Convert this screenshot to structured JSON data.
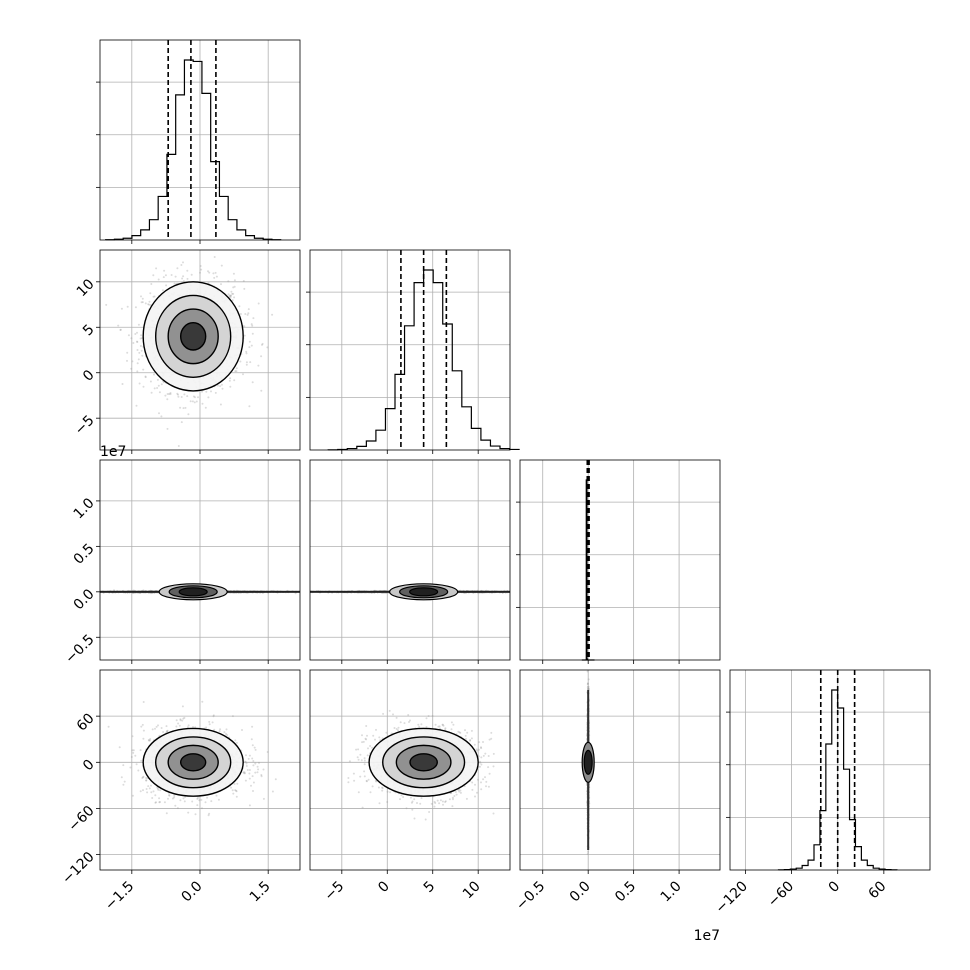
{
  "chart_data": {
    "type": "corner",
    "grid": true,
    "parameters": [
      {
        "range": [
          -2.2,
          2.2
        ],
        "ticks": [
          -1.5,
          0.0,
          1.5
        ],
        "tick_labels": [
          "−1.5",
          "0.0",
          "1.5"
        ],
        "exponent": "",
        "mean": -0.15,
        "sd": 0.55,
        "quantiles": [
          -0.7,
          -0.2,
          0.35
        ],
        "hist_bins": [
          2,
          5,
          12,
          30,
          70,
          140,
          300,
          590,
          1000,
          1240,
          1230,
          1010,
          540,
          300,
          140,
          70,
          30,
          12,
          5,
          2
        ]
      },
      {
        "range": [
          -8.5,
          13.5
        ],
        "ticks": [
          -5,
          0,
          5,
          10
        ],
        "tick_labels": [
          "−5",
          "0",
          "5",
          "10"
        ],
        "exponent": "",
        "mean": 4.0,
        "sd": 3.0,
        "quantiles": [
          1.5,
          4.0,
          6.5
        ],
        "hist_bins": [
          1,
          3,
          8,
          20,
          50,
          110,
          230,
          420,
          690,
          930,
          1000,
          930,
          700,
          440,
          240,
          120,
          55,
          22,
          8,
          3
        ]
      },
      {
        "range": [
          -0.75,
          1.45
        ],
        "ticks": [
          -0.5,
          0.0,
          0.5,
          1.0
        ],
        "tick_labels": [
          "−0.5",
          "0.0",
          "0.5",
          "1.0"
        ],
        "exponent": "1e7",
        "mean": 0.0,
        "sd": 0.02,
        "quantiles": [
          -0.01,
          0.0,
          0.01
        ],
        "hist_bins": [
          0,
          0,
          0,
          0,
          0,
          0,
          0,
          1000,
          5,
          0,
          0,
          0,
          0,
          0,
          0,
          0,
          0,
          0,
          0,
          0
        ]
      },
      {
        "range": [
          -140,
          120
        ],
        "ticks": [
          -120,
          -60,
          0,
          60
        ],
        "tick_labels": [
          "−120",
          "−60",
          "0",
          "60"
        ],
        "exponent": "",
        "mean": 0,
        "sd": 22,
        "quantiles": [
          -22,
          0,
          22
        ],
        "hist_bins": [
          1,
          2,
          5,
          10,
          25,
          55,
          140,
          330,
          700,
          1000,
          900,
          560,
          280,
          130,
          55,
          25,
          10,
          5,
          2,
          1
        ]
      }
    ],
    "pairs": [
      {
        "row": 1,
        "col": 0
      },
      {
        "row": 2,
        "col": 0
      },
      {
        "row": 2,
        "col": 1
      },
      {
        "row": 3,
        "col": 0
      },
      {
        "row": 3,
        "col": 1
      },
      {
        "row": 3,
        "col": 2
      }
    ]
  }
}
